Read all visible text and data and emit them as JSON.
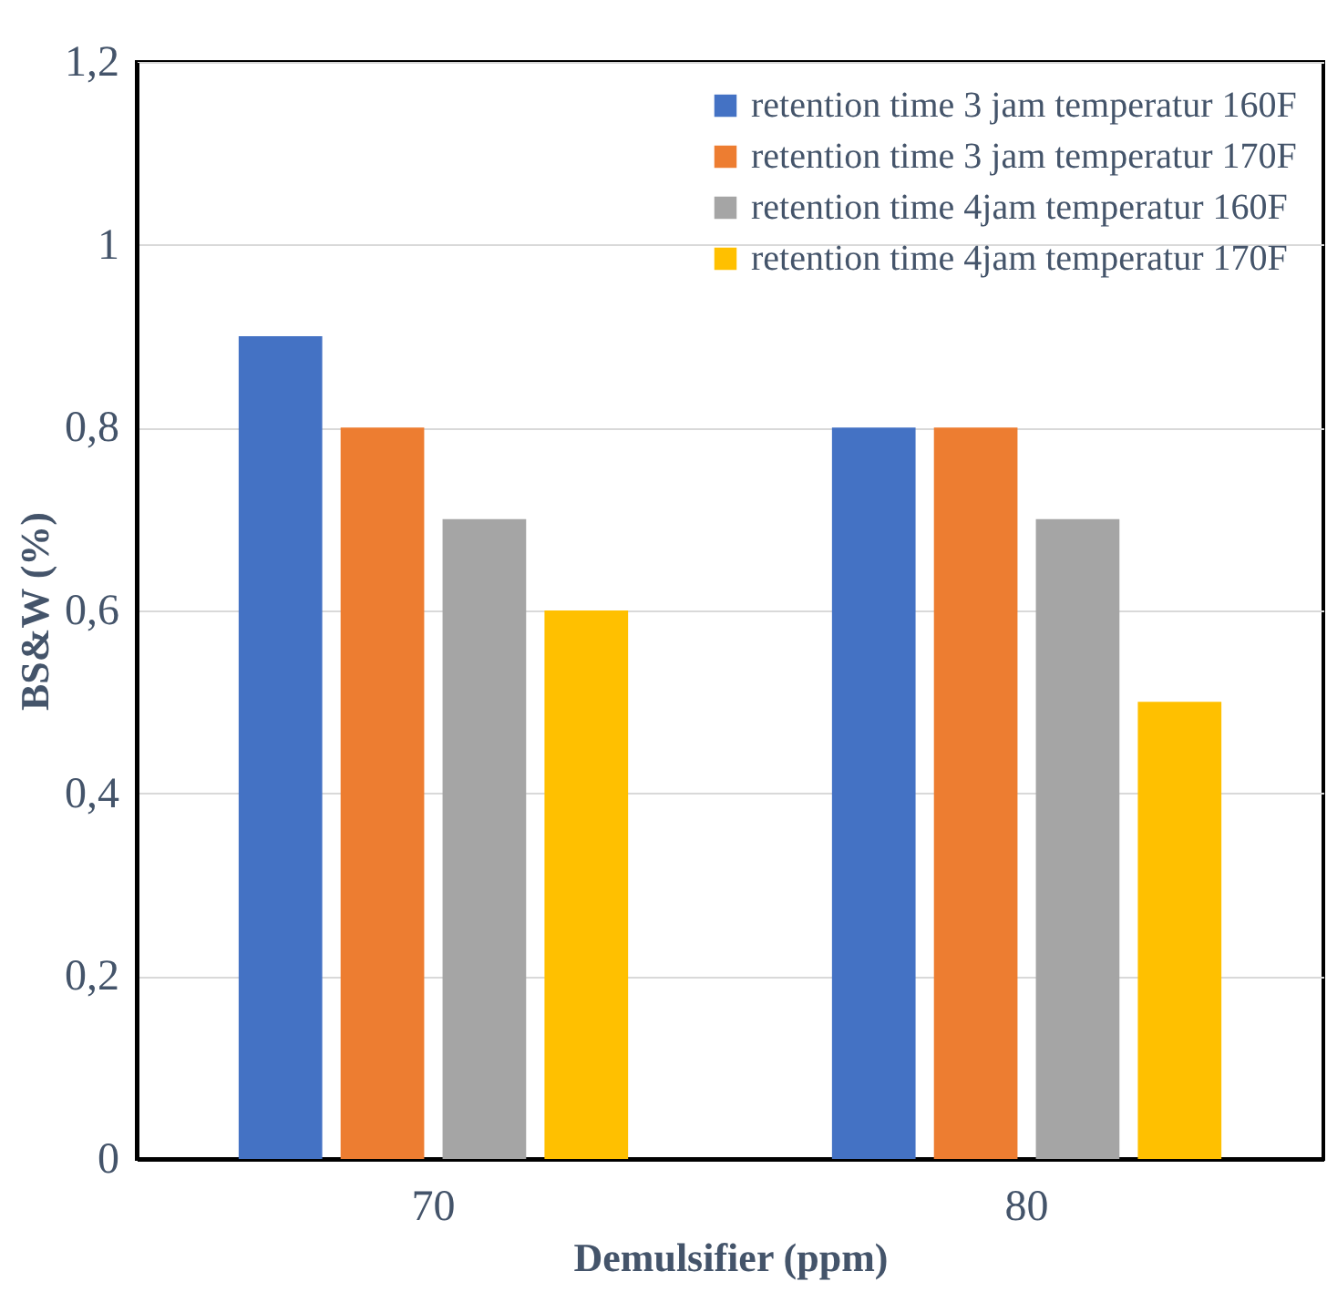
{
  "chart_data": {
    "type": "bar",
    "xlabel": "Demulsifier (ppm)",
    "ylabel": "BS&W (%)",
    "categories": [
      "70",
      "80"
    ],
    "series": [
      {
        "name": "retention time 3 jam temperatur 160F",
        "color": "#4472c4",
        "values": [
          0.9,
          0.8
        ]
      },
      {
        "name": "retention time 3 jam temperatur 170F",
        "color": "#ed7d31",
        "values": [
          0.8,
          0.8
        ]
      },
      {
        "name": "retention time 4jam temperatur 160F",
        "color": "#a5a5a5",
        "values": [
          0.7,
          0.7
        ]
      },
      {
        "name": "retention time 4jam temperatur 170F",
        "color": "#ffc000",
        "values": [
          0.6,
          0.5
        ]
      }
    ],
    "ylim": [
      0,
      1.2
    ],
    "yticks": [
      0,
      {
        "value": 0.2,
        "label": "0,2"
      },
      {
        "value": 0.4,
        "label": "0,4"
      },
      {
        "value": 0.6,
        "label": "0,6"
      },
      {
        "value": 0.8,
        "label": "0,8"
      },
      1,
      {
        "value": 1.2,
        "label": "1,2"
      }
    ],
    "grid": "y",
    "legend": "top right"
  }
}
